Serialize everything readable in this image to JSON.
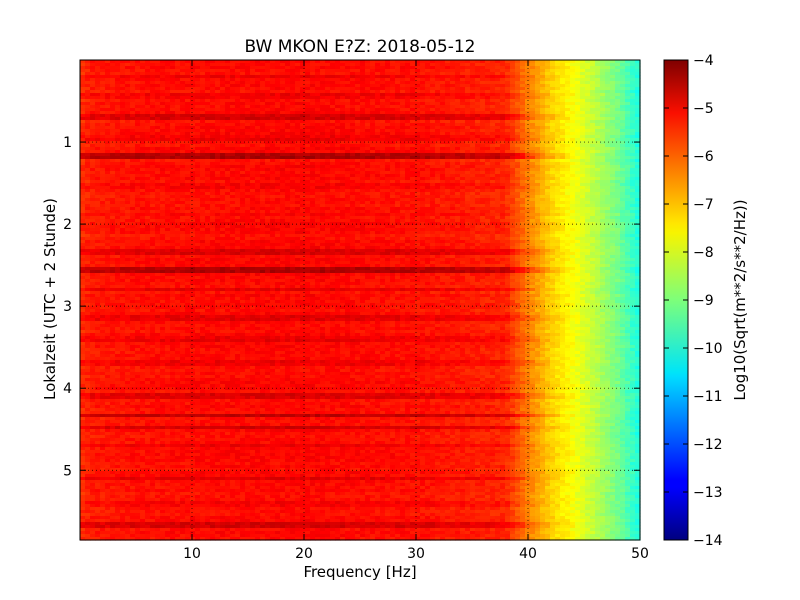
{
  "chart_data": {
    "type": "heatmap",
    "title": "BW MKON E?Z: 2018-05-12",
    "xlabel": "Frequency [Hz]",
    "ylabel": "Lokalzeit (UTC + 2 Stunde)",
    "xlim": [
      0,
      50
    ],
    "ylim": [
      5.85,
      0
    ],
    "x_ticks": [
      10,
      20,
      30,
      40,
      50
    ],
    "x_tick_labels": [
      "10",
      "20",
      "30",
      "40",
      "50"
    ],
    "y_ticks": [
      1,
      2,
      3,
      4,
      5
    ],
    "y_tick_labels": [
      "1",
      "2",
      "3",
      "4",
      "5"
    ],
    "grid": true,
    "colorbar": {
      "label": "Log10(Sqrt(m**2/s**2/Hz))",
      "range": [
        -14,
        -4
      ],
      "colormap": "jet",
      "ticks": [
        -4,
        -5,
        -6,
        -7,
        -8,
        -9,
        -10,
        -11,
        -12,
        -13,
        -14
      ],
      "tick_labels": [
        "−4",
        "−5",
        "−6",
        "−7",
        "−8",
        "−9",
        "−10",
        "−11",
        "−12",
        "−13",
        "−14"
      ]
    },
    "spectrum_profile": {
      "frequency_hz": [
        0,
        1,
        5,
        10,
        20,
        30,
        38,
        40,
        42,
        44,
        46,
        48,
        50
      ],
      "log10_level": [
        -5.7,
        -5.5,
        -5.4,
        -5.35,
        -5.3,
        -5.4,
        -5.6,
        -6.5,
        -7.3,
        -7.8,
        -8.4,
        -9.1,
        -10.0
      ]
    },
    "time_bands": [
      {
        "time": 0.2,
        "level_offset": 0.25
      },
      {
        "time": 0.45,
        "level_offset": 0.2
      },
      {
        "time": 0.7,
        "level_offset": 0.45
      },
      {
        "time": 0.95,
        "level_offset": 0.25
      },
      {
        "time": 1.16,
        "level_offset": 0.9
      },
      {
        "time": 1.55,
        "level_offset": 0.2
      },
      {
        "time": 2.35,
        "level_offset": 0.4
      },
      {
        "time": 2.55,
        "level_offset": 0.95
      },
      {
        "time": 2.8,
        "level_offset": 0.4
      },
      {
        "time": 3.15,
        "level_offset": 0.3
      },
      {
        "time": 3.4,
        "level_offset": 0.3
      },
      {
        "time": 3.7,
        "level_offset": 0.2
      },
      {
        "time": 4.1,
        "level_offset": 0.35
      },
      {
        "time": 4.33,
        "level_offset": 0.7
      },
      {
        "time": 4.48,
        "level_offset": 0.6
      },
      {
        "time": 4.7,
        "level_offset": 0.25
      },
      {
        "time": 5.1,
        "level_offset": 0.45
      },
      {
        "time": 5.4,
        "level_offset": 0.2
      },
      {
        "time": 5.68,
        "level_offset": 0.5
      }
    ]
  }
}
